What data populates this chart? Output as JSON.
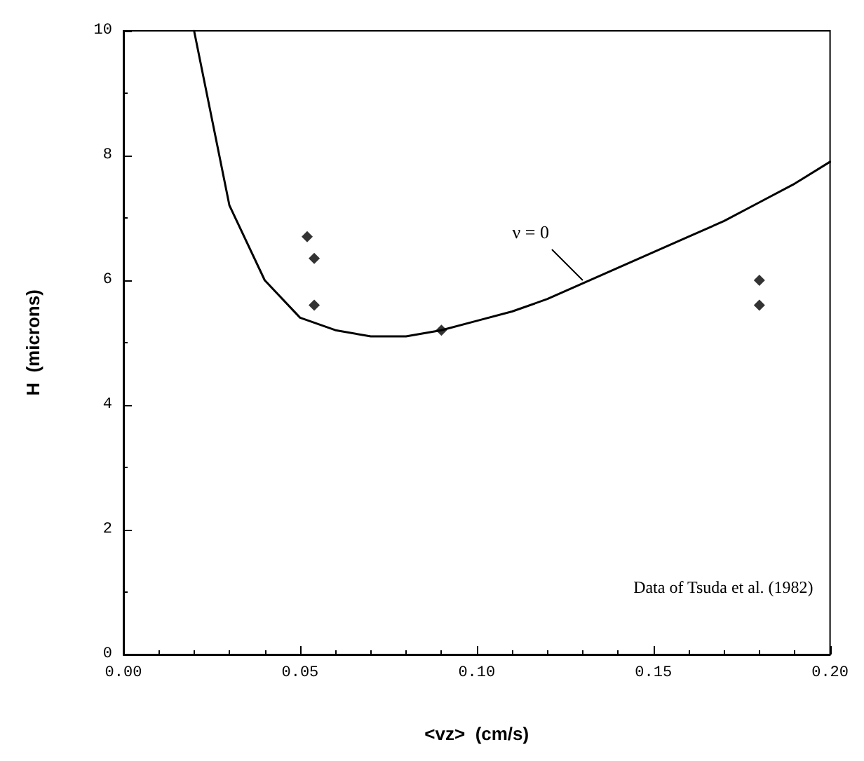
{
  "chart_data": {
    "type": "scatter",
    "xlabel": "<vz>  (cm/s)",
    "ylabel": "H  (microns)",
    "xlim": [
      0,
      0.2
    ],
    "ylim": [
      0,
      10
    ],
    "xticks": [
      {
        "value": 0,
        "label": "0.00"
      },
      0.05,
      {
        "value": 0.1,
        "label": "0.10"
      },
      0.15,
      {
        "value": 0.2,
        "label": "0.20"
      }
    ],
    "yticks": [
      0,
      2,
      4,
      6,
      8,
      10
    ],
    "grid": false,
    "marker": "diamond",
    "series": [
      {
        "type": "line",
        "color": "#000000",
        "marker": "none",
        "line_style": "solid",
        "x": [
          0.02,
          0.03,
          0.04,
          0.05,
          0.06,
          0.07,
          0.08,
          0.09,
          0.1,
          0.11,
          0.12,
          0.13,
          0.14,
          0.15,
          0.16,
          0.17,
          0.18,
          0.19,
          0.2
        ],
        "values": [
          10,
          7.2,
          6.0,
          5.4,
          5.2,
          5.1,
          5.1,
          5.2,
          5.35,
          5.5,
          5.7,
          5.95,
          6.2,
          6.45,
          6.7,
          6.95,
          7.25,
          7.55,
          7.9
        ]
      },
      {
        "color": "#000000",
        "x": [
          0.052,
          0.054,
          0.054,
          0.09,
          0.18,
          0.18
        ],
        "values": [
          6.7,
          6.35,
          5.6,
          5.2,
          6.0,
          5.6
        ]
      }
    ],
    "annotations": [
      {
        "text": "ν = 0",
        "x": 0.13,
        "y": 6.0
      },
      "Data of Tsuda et al. (1982)"
    ]
  }
}
